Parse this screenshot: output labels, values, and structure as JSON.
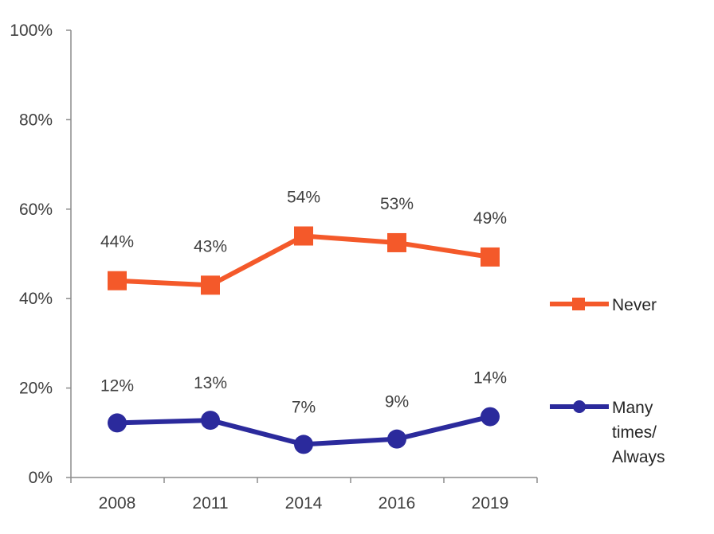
{
  "chart_data": {
    "type": "line",
    "x": [
      "2008",
      "2011",
      "2014",
      "2016",
      "2019"
    ],
    "ylim": [
      0,
      100
    ],
    "yticks": [
      "0%",
      "20%",
      "40%",
      "60%",
      "80%",
      "100%"
    ],
    "grid": false,
    "legend_position": "right",
    "series": [
      {
        "name": "Never",
        "values": [
          44,
          43,
          54,
          53,
          49
        ],
        "labels": [
          "44%",
          "43%",
          "54%",
          "53%",
          "49%"
        ],
        "plot_values": [
          44,
          43,
          54,
          52.5,
          49.3
        ],
        "color": "#F4592A",
        "marker": "square"
      },
      {
        "name_lines": [
          "Many",
          "times/",
          "Always"
        ],
        "values": [
          12,
          13,
          7,
          9,
          14
        ],
        "labels": [
          "12%",
          "13%",
          "7%",
          "9%",
          "14%"
        ],
        "plot_values": [
          12.2,
          12.8,
          7.4,
          8.6,
          13.6
        ],
        "color": "#2B2A9C",
        "marker": "circle"
      }
    ]
  }
}
